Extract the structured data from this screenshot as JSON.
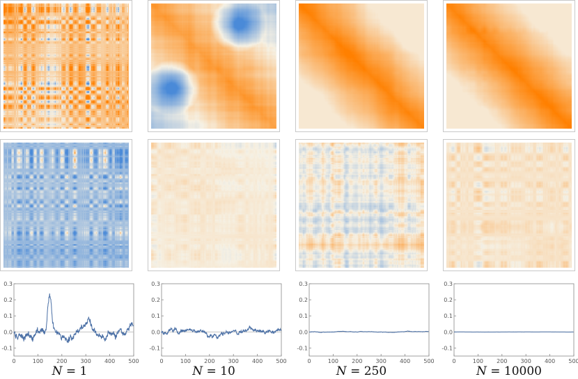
{
  "columns": [
    {
      "label_var": "N",
      "label_eq": " = ",
      "label_val": "1",
      "seed": 11,
      "top_kind": "mixed",
      "bot_kind": "blue"
    },
    {
      "label_var": "N",
      "label_eq": " = ",
      "label_val": "10",
      "seed": 23,
      "top_kind": "diag_blobs",
      "bot_kind": "mixed2"
    },
    {
      "label_var": "N",
      "label_eq": " = ",
      "label_val": "250",
      "seed": 37,
      "top_kind": "diag",
      "bot_kind": "patch"
    },
    {
      "label_var": "N",
      "label_eq": " = ",
      "label_val": "10000",
      "seed": 41,
      "top_kind": "diag",
      "bot_kind": "patch2"
    }
  ],
  "chart_data": [
    {
      "type": "line",
      "x_range": [
        0,
        500
      ],
      "ylim": [
        -0.15,
        0.3
      ],
      "xticks": [
        "0",
        "100",
        "200",
        "300",
        "400",
        "500"
      ],
      "yticks": [
        "-0.1",
        "0.0",
        "0.1",
        "0.2",
        "0.3"
      ],
      "amplitude": 0.085,
      "peak": [
        150,
        0.28
      ],
      "color": "#4a6fa5"
    },
    {
      "type": "line",
      "x_range": [
        0,
        500
      ],
      "ylim": [
        -0.15,
        0.3
      ],
      "xticks": [
        "0",
        "100",
        "200",
        "300",
        "400",
        "500"
      ],
      "yticks": [
        "-0.1",
        "0.0",
        "0.1",
        "0.2",
        "0.3"
      ],
      "amplitude": 0.04,
      "peak": null,
      "color": "#4a6fa5"
    },
    {
      "type": "line",
      "x_range": [
        0,
        500
      ],
      "ylim": [
        -0.15,
        0.3
      ],
      "xticks": [
        "0",
        "100",
        "200",
        "300",
        "400",
        "500"
      ],
      "yticks": [
        "-0.1",
        "0.0",
        "0.1",
        "0.2",
        "0.3"
      ],
      "amplitude": 0.006,
      "peak": null,
      "color": "#4a6fa5"
    },
    {
      "type": "line",
      "x_range": [
        0,
        500
      ],
      "ylim": [
        -0.15,
        0.3
      ],
      "xticks": [
        "0",
        "100",
        "200",
        "300",
        "400",
        "500"
      ],
      "yticks": [
        "-0.1",
        "0.0",
        "0.1",
        "0.2",
        "0.3"
      ],
      "amplitude": 0.001,
      "peak": null,
      "color": "#4a6fa5"
    }
  ],
  "colors": {
    "orange": "#ff8000",
    "cream": "#f6f1e4",
    "blue": "#4a8ad8",
    "line": "#4a6fa5",
    "axis": "#888888"
  }
}
